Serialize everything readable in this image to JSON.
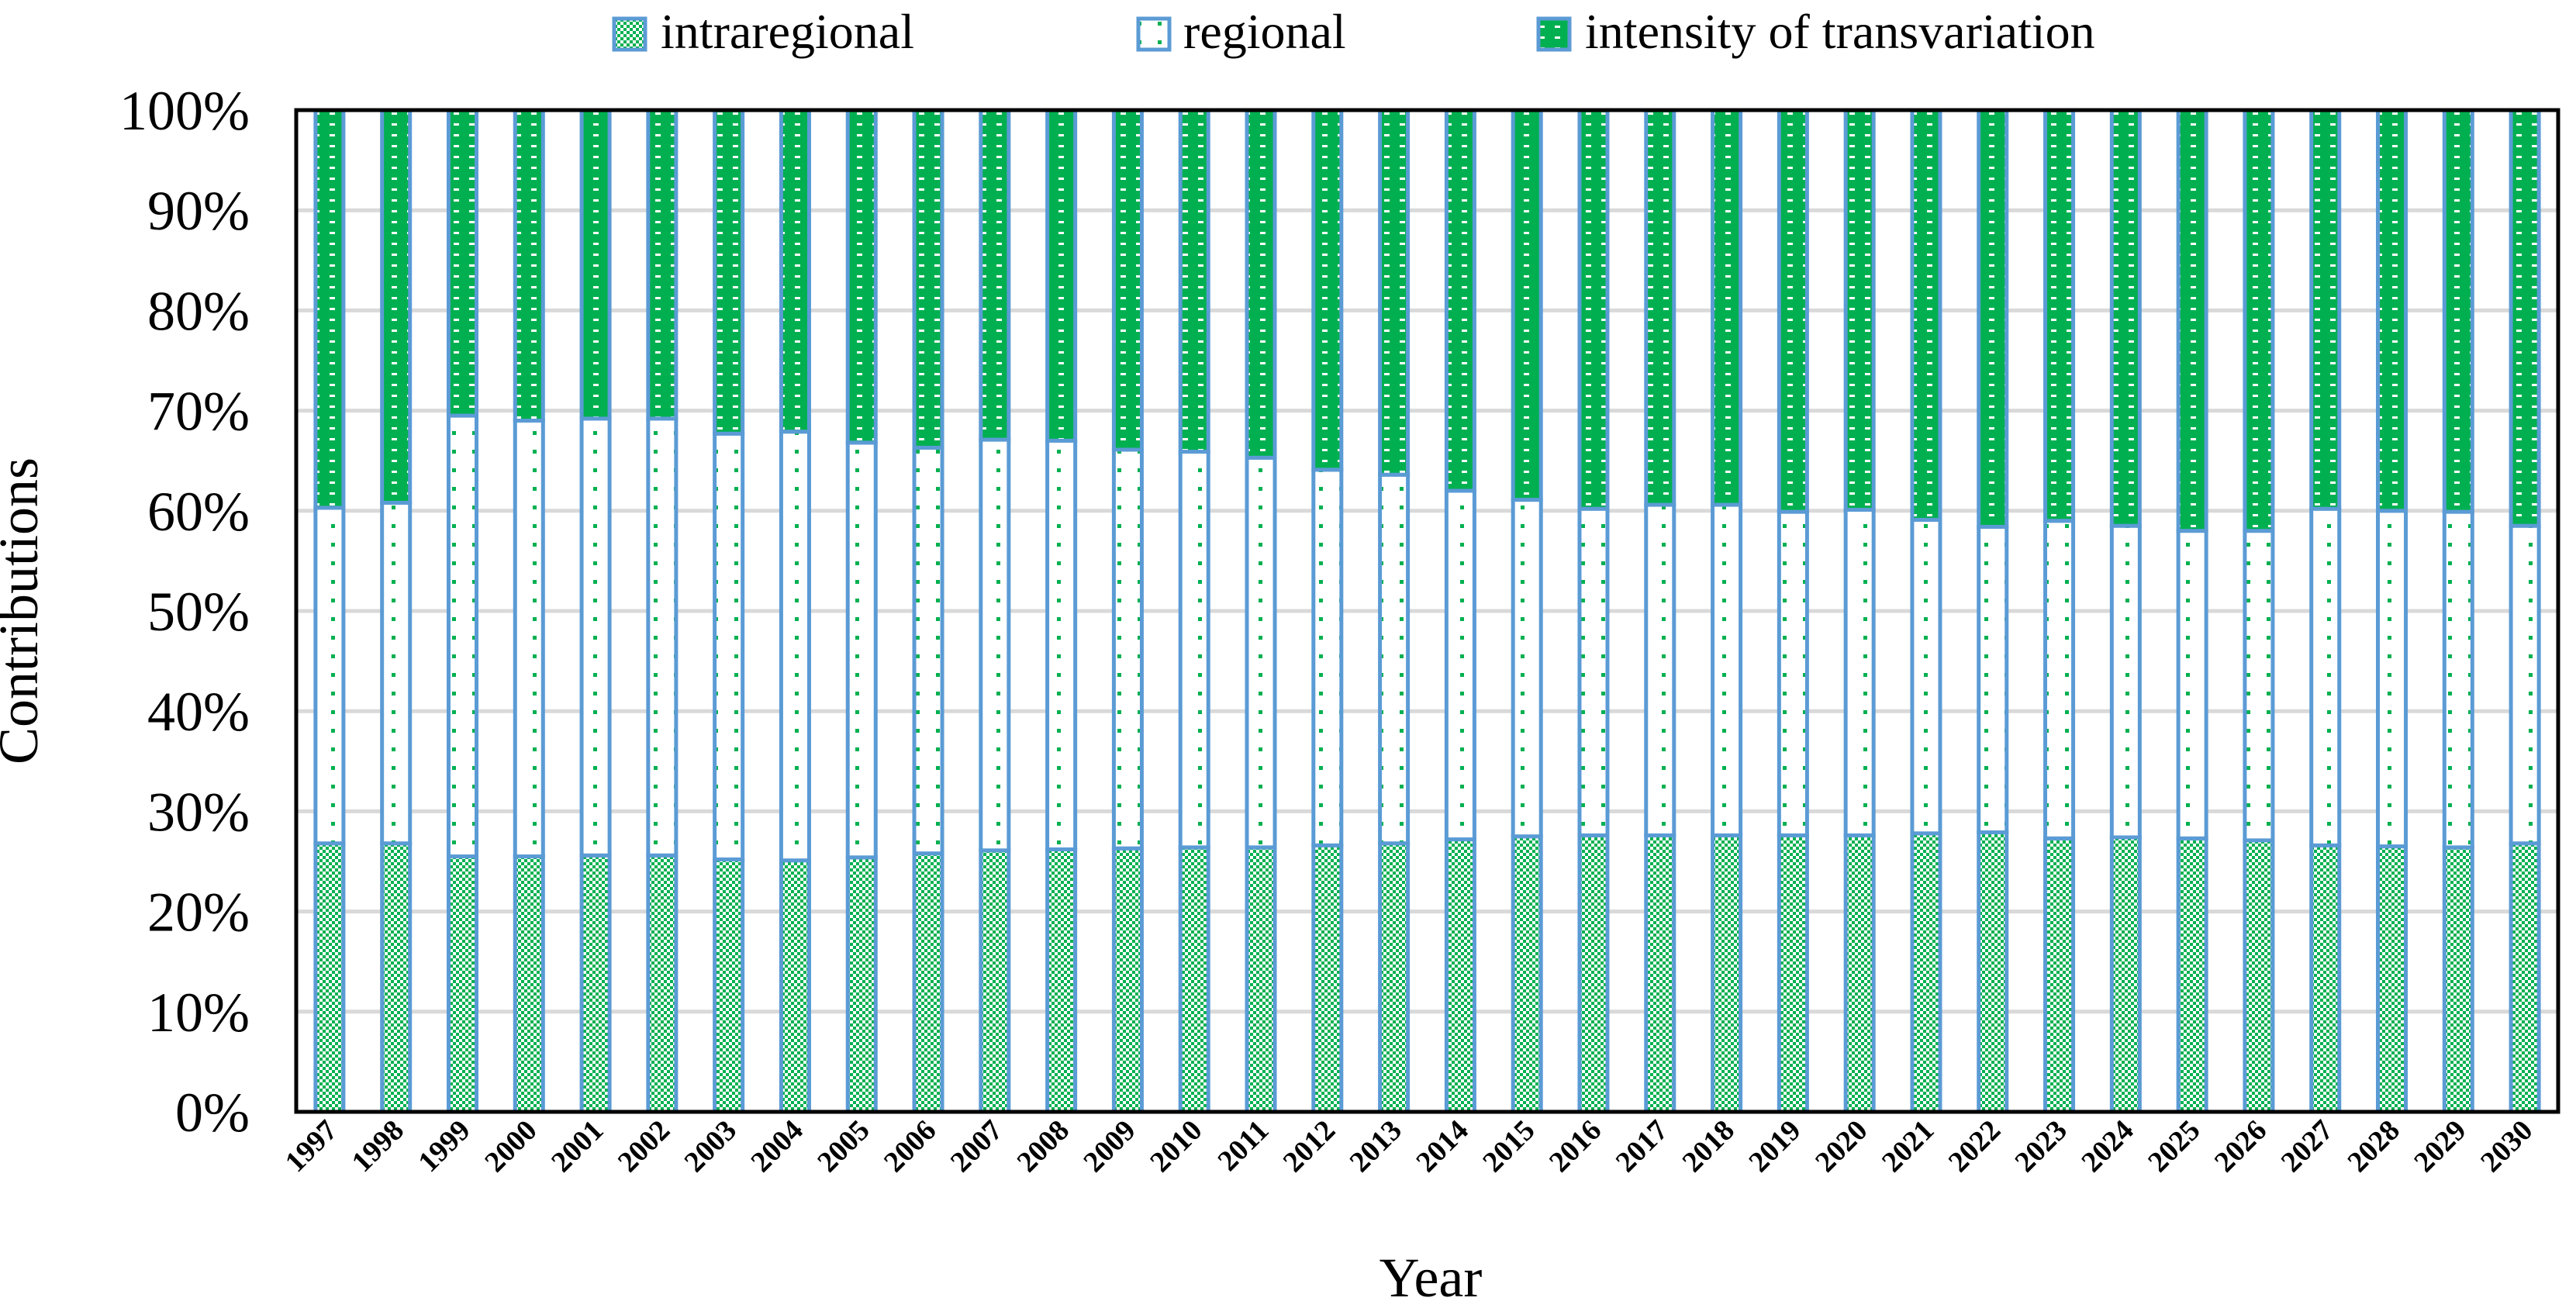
{
  "chart_data": {
    "type": "bar",
    "stacked": true,
    "percent": true,
    "title": "",
    "xlabel": "Year",
    "ylabel": "Contributions",
    "ylim": [
      0,
      100
    ],
    "yticks": [
      "0%",
      "10%",
      "20%",
      "30%",
      "40%",
      "50%",
      "60%",
      "70%",
      "80%",
      "90%",
      "100%"
    ],
    "legend_position": "top",
    "categories": [
      "1997",
      "1998",
      "1999",
      "2000",
      "2001",
      "2002",
      "2003",
      "2004",
      "2005",
      "2006",
      "2007",
      "2008",
      "2009",
      "2010",
      "2011",
      "2012",
      "2013",
      "2014",
      "2015",
      "2016",
      "2017",
      "2018",
      "2019",
      "2020",
      "2021",
      "2022",
      "2023",
      "2024",
      "2025",
      "2026",
      "2027",
      "2028",
      "2029",
      "2030"
    ],
    "series": [
      {
        "name": "intraregional",
        "pattern": "checker",
        "values": [
          26.8,
          26.8,
          25.5,
          25.5,
          25.6,
          25.6,
          25.2,
          25.1,
          25.4,
          25.8,
          26.1,
          26.2,
          26.3,
          26.4,
          26.4,
          26.6,
          26.8,
          27.2,
          27.5,
          27.6,
          27.6,
          27.6,
          27.6,
          27.6,
          27.8,
          27.9,
          27.3,
          27.4,
          27.3,
          27.1,
          26.6,
          26.5,
          26.4,
          26.8
        ]
      },
      {
        "name": "regional",
        "pattern": "dots",
        "values": [
          33.5,
          34.0,
          44.0,
          43.5,
          43.6,
          43.6,
          42.5,
          42.8,
          41.4,
          40.5,
          41.0,
          40.8,
          39.8,
          39.5,
          38.9,
          37.5,
          36.8,
          34.8,
          33.6,
          32.6,
          33.0,
          33.0,
          32.3,
          32.5,
          31.3,
          30.5,
          31.7,
          31.1,
          30.7,
          30.9,
          33.6,
          33.5,
          33.5,
          31.7
        ]
      },
      {
        "name": "intensity of transvariation",
        "pattern": "dashes",
        "values": [
          39.7,
          39.2,
          30.5,
          31.0,
          30.8,
          30.8,
          32.3,
          32.1,
          33.2,
          33.7,
          32.9,
          33.0,
          33.9,
          34.1,
          34.7,
          35.9,
          36.4,
          38.0,
          38.9,
          39.8,
          39.4,
          39.4,
          40.1,
          39.9,
          40.9,
          41.6,
          41.0,
          41.5,
          42.0,
          42.0,
          39.8,
          40.0,
          40.1,
          41.5
        ]
      }
    ]
  },
  "colors": {
    "bar_outline": "#5B9BD5",
    "fill_green": "#00B050",
    "fill_background": "#ffffff",
    "gridline": "#d9d9d9",
    "plot_border": "#000000"
  }
}
